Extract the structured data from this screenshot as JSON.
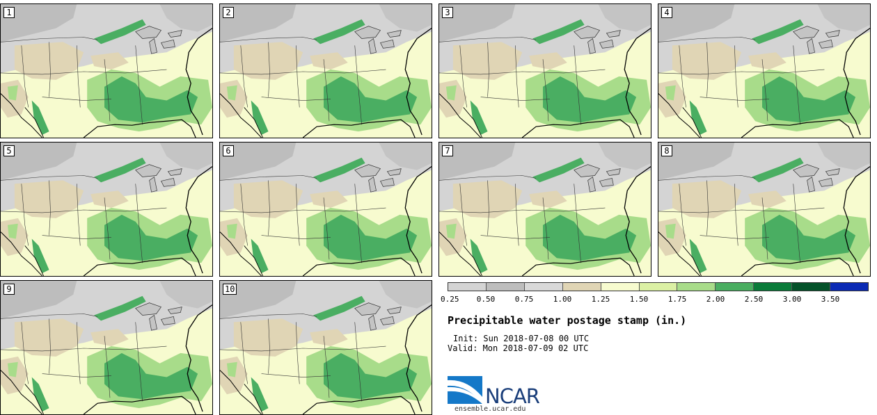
{
  "stamps": [
    {
      "label": "1"
    },
    {
      "label": "2"
    },
    {
      "label": "3"
    },
    {
      "label": "4"
    },
    {
      "label": "5"
    },
    {
      "label": "6"
    },
    {
      "label": "7"
    },
    {
      "label": "8"
    },
    {
      "label": "9"
    },
    {
      "label": "10"
    }
  ],
  "legend": {
    "colors": [
      "#d4d4d4",
      "#bdbdbd",
      "#d9d9d9",
      "#e0d5b5",
      "#f7fbcf",
      "#dbf0a4",
      "#a8dc8a",
      "#4aae62",
      "#0a7b3a",
      "#04522a",
      "#0b2ab5"
    ],
    "ticks": [
      "0.25",
      "0.50",
      "0.75",
      "1.00",
      "1.25",
      "1.50",
      "1.75",
      "2.00",
      "2.50",
      "3.00",
      "3.50"
    ]
  },
  "title": "Precipitable water postage stamp (in.)",
  "init": "Init: Sun 2018-07-08 00 UTC",
  "valid": "Valid: Mon 2018-07-09 02 UTC",
  "logo": {
    "text": "NCAR",
    "url": "ensemble.ucar.edu"
  }
}
